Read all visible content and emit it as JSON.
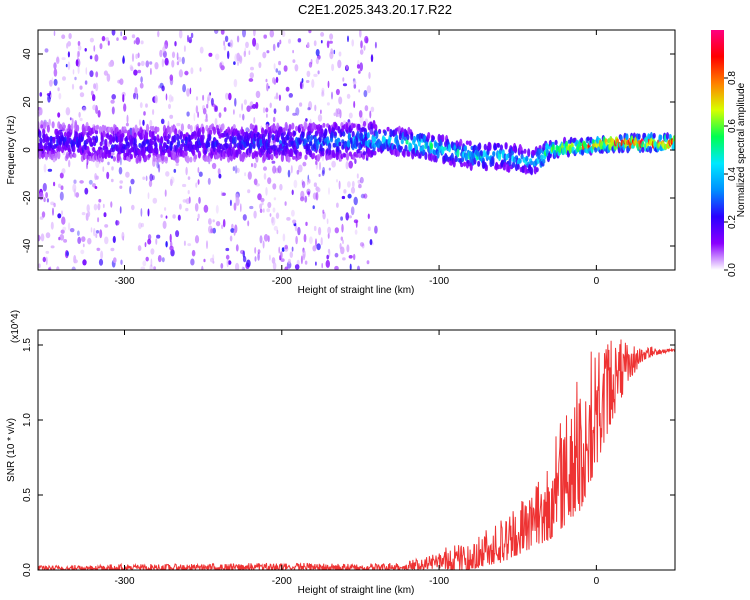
{
  "title": "C2E1.2025.343.20.17.R22",
  "chart_data": [
    {
      "type": "heatmap",
      "name": "spectrogram",
      "xlabel": "Height of straight line (km)",
      "ylabel": "Frequency (Hz)",
      "xlim": [
        -355,
        50
      ],
      "ylim": [
        -50,
        50
      ],
      "xticks": [
        -300,
        -200,
        -100,
        0
      ],
      "xtick_labels": [
        "-300",
        "-200",
        "-100",
        "0"
      ],
      "yticks": [
        -40,
        -20,
        0,
        20,
        40
      ],
      "ytick_labels": [
        "-40",
        "-20",
        "0",
        "20",
        "40"
      ],
      "colorbar": {
        "label": "Normalized spectral amplitude",
        "range": [
          0,
          1
        ],
        "ticks": [
          0.0,
          0.2,
          0.4,
          0.6,
          0.8
        ],
        "tick_labels": [
          "0.0",
          "0.2",
          "0.4",
          "0.6",
          "0.8"
        ],
        "colormap": [
          "#ffffff",
          "#8a00ff",
          "#2a00ff",
          "#0090ff",
          "#00e8ff",
          "#00ff50",
          "#d8ff00",
          "#ff8000",
          "#ff0000",
          "#ff0080"
        ]
      },
      "ridge": {
        "x": [
          -355,
          -320,
          -300,
          -250,
          -200,
          -150,
          -130,
          -110,
          -90,
          -70,
          -60,
          -50,
          -40,
          -35,
          -30,
          -20,
          0,
          10,
          20,
          50
        ],
        "frequency": [
          4,
          3,
          2,
          3,
          3,
          4,
          4,
          2,
          -1,
          -3,
          -2,
          -4,
          -5,
          -3,
          0,
          1,
          2,
          3,
          3,
          3
        ],
        "amplitude": [
          0.25,
          0.25,
          0.25,
          0.25,
          0.3,
          0.4,
          0.5,
          0.55,
          0.5,
          0.5,
          0.5,
          0.45,
          0.45,
          0.55,
          0.6,
          0.75,
          0.9,
          0.95,
          1.0,
          1.0
        ]
      },
      "background_noise_extent": [
        -355,
        -140
      ]
    },
    {
      "type": "line",
      "name": "snr",
      "xlabel": "Height of straight line (km)",
      "ylabel": "SNR (10 * v/v)",
      "yscale_label": "(x10^4)",
      "xlim": [
        -355,
        50
      ],
      "ylim": [
        0,
        1.6
      ],
      "xticks": [
        -300,
        -200,
        -100,
        0
      ],
      "xtick_labels": [
        "-300",
        "-200",
        "-100",
        "0"
      ],
      "yticks": [
        0.0,
        0.5,
        1.0,
        1.5
      ],
      "ytick_labels": [
        "0.0",
        "0.5",
        "1.0",
        "1.5"
      ],
      "color": "#ee3333",
      "series": [
        {
          "name": "SNR",
          "x": [
            -355,
            -300,
            -250,
            -200,
            -150,
            -120,
            -100,
            -90,
            -80,
            -70,
            -60,
            -50,
            -40,
            -30,
            -20,
            -10,
            0,
            10,
            20,
            30,
            40,
            50
          ],
          "envelope_low": [
            0.0,
            0.0,
            0.0,
            0.0,
            0.0,
            0.0,
            0.01,
            0.0,
            0.0,
            0.03,
            0.05,
            0.1,
            0.15,
            0.2,
            0.3,
            0.4,
            0.7,
            1.0,
            1.25,
            1.4,
            1.44,
            1.46
          ],
          "envelope_high": [
            0.03,
            0.04,
            0.04,
            0.05,
            0.04,
            0.06,
            0.12,
            0.2,
            0.15,
            0.3,
            0.35,
            0.45,
            0.6,
            0.75,
            1.1,
            1.4,
            1.5,
            1.6,
            1.5,
            1.5,
            1.48,
            1.48
          ]
        }
      ]
    }
  ]
}
